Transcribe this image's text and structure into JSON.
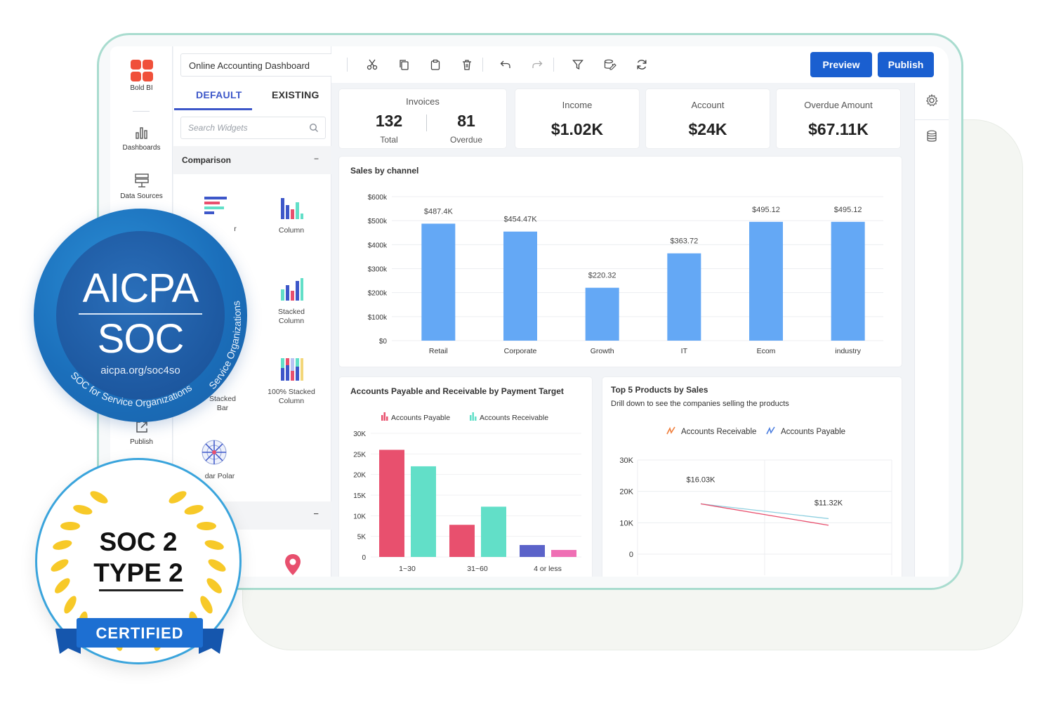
{
  "app": {
    "brand": "Bold BI",
    "dashboard_title": "Online Accounting Dashboard"
  },
  "rail": {
    "items": [
      {
        "label": "Dashboards",
        "icon": "bar-chart-icon"
      },
      {
        "label": "Data Sources",
        "icon": "database-icon"
      },
      {
        "label": "Publish",
        "icon": "publish-icon"
      }
    ]
  },
  "panel": {
    "tabs": [
      {
        "label": "DEFAULT",
        "active": true
      },
      {
        "label": "EXISTING",
        "active": false
      }
    ],
    "search_placeholder": "Search Widgets",
    "section": "Comparison",
    "widgets": [
      {
        "label": "Bar",
        "visible_label": "r"
      },
      {
        "label": "Column"
      },
      {
        "label": "Stacked Column"
      },
      {
        "label": "Stacked Bar",
        "visible_label": "Stacked Bar"
      },
      {
        "label": "100% Stacked Column"
      },
      {
        "label": "Radar Polar",
        "visible_label": "dar Polar"
      }
    ]
  },
  "toolbar": {
    "preview_label": "Preview",
    "publish_label": "Publish",
    "icons": [
      "cut-icon",
      "copy-icon",
      "paste-icon",
      "delete-icon",
      "undo-icon",
      "redo-icon",
      "filter-icon",
      "data-edit-icon",
      "refresh-icon"
    ]
  },
  "kpis": {
    "invoices": {
      "label": "Invoices",
      "total": "132",
      "total_label": "Total",
      "overdue": "81",
      "overdue_label": "Overdue"
    },
    "income": {
      "label": "Income",
      "value": "$1.02K"
    },
    "account": {
      "label": "Account",
      "value": "$24K"
    },
    "overdue_amount": {
      "label": "Overdue Amount",
      "value": "$67.11K"
    }
  },
  "chart_data": [
    {
      "type": "bar",
      "title": "Sales by channel",
      "categories": [
        "Retail",
        "Corporate",
        "Growth",
        "IT",
        "Ecom",
        "industry"
      ],
      "values": [
        487.4,
        454.47,
        220.32,
        363.72,
        495.12,
        495.12
      ],
      "data_labels": [
        "$487.4K",
        "$454.47K",
        "$220.32",
        "$363.72",
        "$495.12",
        "$495.12"
      ],
      "y_ticks": [
        "$0",
        "$100k",
        "$200k",
        "$300k",
        "$400k",
        "$500k",
        "$600k"
      ],
      "ylim": [
        0,
        600
      ],
      "grid": true,
      "color": "#64a8f5"
    },
    {
      "type": "bar",
      "title": "Accounts Payable and Receivable by Payment Target",
      "categories": [
        "1~30",
        "31~60",
        "4 or less"
      ],
      "series": [
        {
          "name": "Accounts Payable",
          "values": [
            26000,
            7800,
            2900
          ],
          "color": "#e8506e"
        },
        {
          "name": "Accounts Receivable",
          "values": [
            22000,
            12200,
            1700
          ],
          "color": "#62dfc8"
        }
      ],
      "series_colors_alt": [
        "#5b63c9",
        "#ef6fb4"
      ],
      "y_ticks": [
        "0",
        "5K",
        "10K",
        "15K",
        "20K",
        "25K",
        "30K"
      ],
      "ylim": [
        0,
        30000
      ],
      "legend": "top"
    },
    {
      "type": "line",
      "title": "Top 5 Products by Sales",
      "subtitle": "Drill down to see the companies selling the products",
      "series": [
        {
          "name": "Accounts Receivable",
          "values": [
            16030,
            11320
          ],
          "color": "#8fd0e0"
        },
        {
          "name": "Accounts Payable",
          "values": [
            16030,
            9200
          ],
          "color": "#e8506e"
        }
      ],
      "data_labels": [
        "$16.03K",
        "$11.32K"
      ],
      "y_ticks": [
        "0",
        "10K",
        "20K",
        "30K"
      ],
      "ylim": [
        0,
        30000
      ],
      "legend_icon_colors": [
        "#f07d3a",
        "#4d7fe0"
      ],
      "legend": "top"
    }
  ],
  "badges": {
    "aicpa": {
      "title": "AICPA",
      "subtitle": "SOC",
      "url": "aicpa.org/soc4so",
      "arc_right": "Service Organizations",
      "arc_bottom": "SOC for Service Organizations"
    },
    "soc2": {
      "line1": "SOC 2",
      "line2": "TYPE 2",
      "ribbon": "CERTIFIED"
    }
  }
}
